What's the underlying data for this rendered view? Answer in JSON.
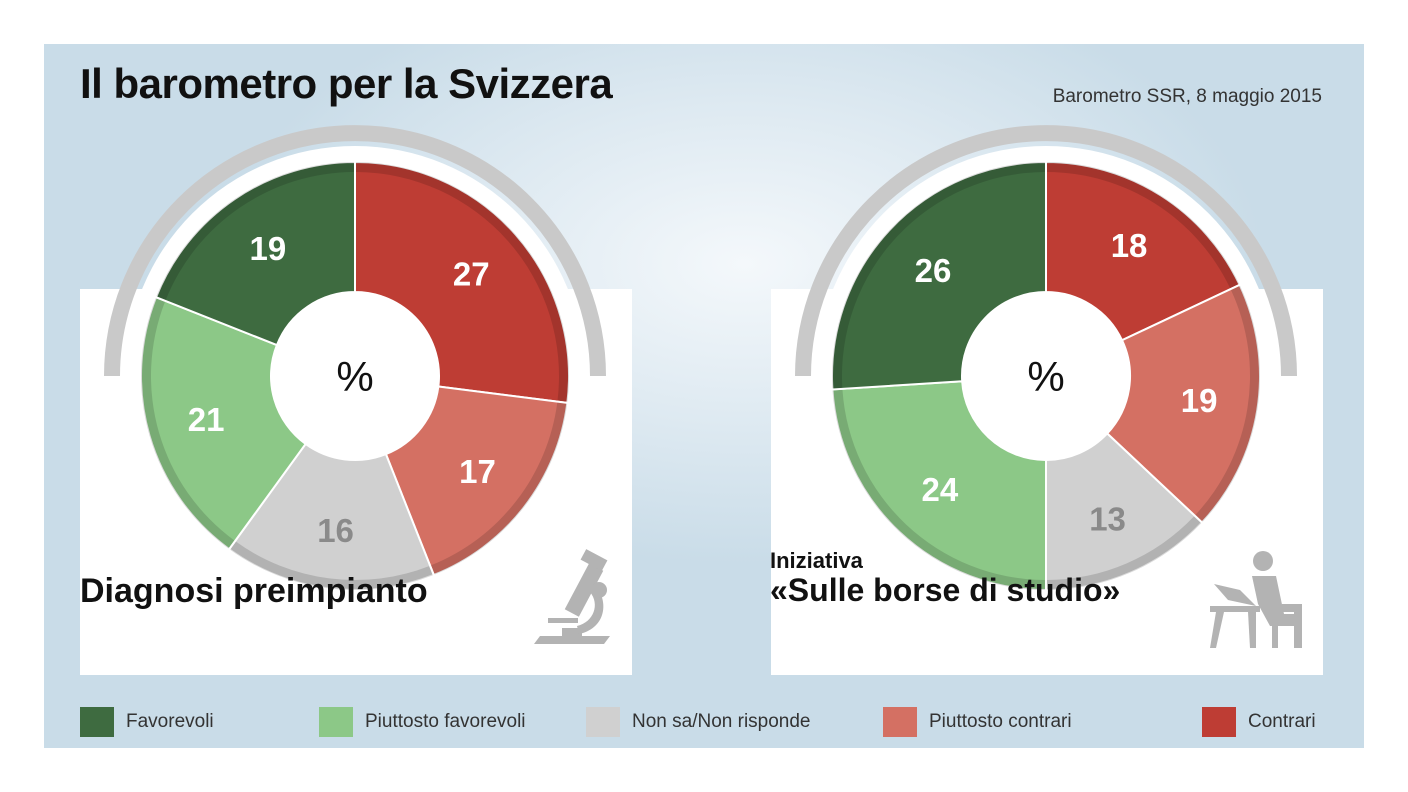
{
  "header": {
    "title": "Il barometro per la Svizzera",
    "source": "Barometro SSR, 8 maggio 2015"
  },
  "colors": {
    "favorevoli": "#3e6b40",
    "piuttosto_favorevoli": "#8cc887",
    "non_sa": "#d0d0d0",
    "piuttosto_contrari": "#d47063",
    "contrari": "#be3d34"
  },
  "icons": {
    "left": "microscope-icon",
    "right": "student-reading-icon"
  },
  "chart_data": [
    {
      "type": "pie",
      "title": "Diagnosi preimpianto",
      "center_label": "%",
      "categories": [
        "Contrari",
        "Piuttosto contrari",
        "Non sa/Non risponde",
        "Piuttosto favorevoli",
        "Favorevoli"
      ],
      "values": [
        27,
        17,
        16,
        21,
        19
      ]
    },
    {
      "type": "pie",
      "title_line1": "Iniziativa",
      "title": "«Sulle borse di studio»",
      "center_label": "%",
      "categories": [
        "Contrari",
        "Piuttosto contrari",
        "Non sa/Non risponde",
        "Piuttosto favorevoli",
        "Favorevoli"
      ],
      "values": [
        18,
        19,
        13,
        24,
        26
      ]
    }
  ],
  "legend": [
    {
      "label": "Favorevoli",
      "color": "#3e6b40"
    },
    {
      "label": "Piuttosto favorevoli",
      "color": "#8cc887"
    },
    {
      "label": "Non sa/Non risponde",
      "color": "#d0d0d0"
    },
    {
      "label": "Piuttosto contrari",
      "color": "#d47063"
    },
    {
      "label": "Contrari",
      "color": "#be3d34"
    }
  ]
}
